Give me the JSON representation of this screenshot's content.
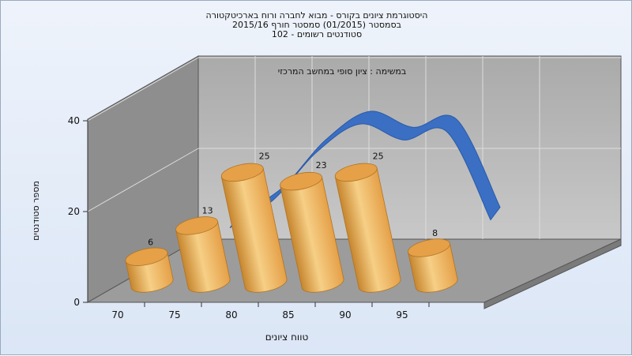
{
  "titles": [
    "היסטוגרמת ציונים בקורס - מבוא לחברה ורוח בארכיטקטורה",
    "בסמסטר  (01/2015)  סמסטר חורף  2015/16",
    "סטודנטים רשומים - 102"
  ],
  "colors": {
    "bar_light": "#f6cf86",
    "bar_mid": "#e5a048",
    "bar_dark": "#c7862f",
    "curve": "#3a6fc4",
    "back_wall": "#b4b4b4",
    "side_wall": "#8e8e8e",
    "floor": "#9c9c9c"
  },
  "chart_data": {
    "type": "bar",
    "title": "היסטוגרמת ציונים בקורס - מבוא לחברה ורוח בארכיטקטורה",
    "subtitle": "במשימה : ציון סופי במחשב המרכזי",
    "xlabel": "טווח ציונים",
    "ylabel": "מספר סטודנטים",
    "categories": [
      "70",
      "75",
      "80",
      "85",
      "90",
      "95"
    ],
    "values": [
      6,
      13,
      25,
      23,
      25,
      8
    ],
    "ylim": [
      0,
      40
    ],
    "yticks": [
      "0",
      "20",
      "40"
    ],
    "curve": {
      "type": "ribbon",
      "y": [
        6,
        13,
        25,
        32,
        28,
        30,
        8
      ]
    },
    "grid": true,
    "three_d": true
  }
}
